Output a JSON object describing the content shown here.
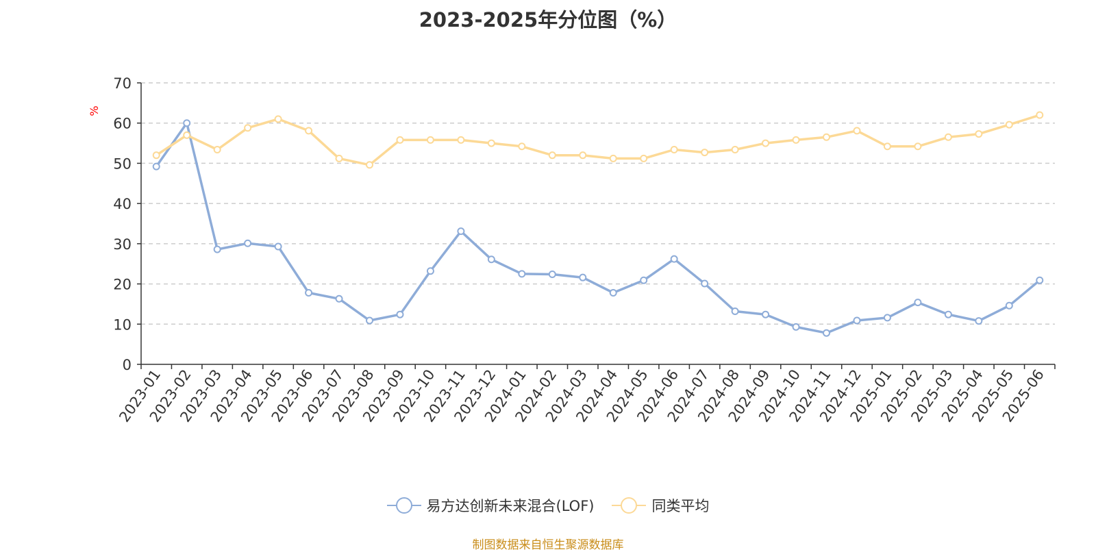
{
  "title": "2023-2025年分位图（%）",
  "source": "制图数据来自恒生聚源数据库",
  "colors": {
    "series1": "#8eacd8",
    "series2": "#fcd996",
    "grid": "#cccccc",
    "axis": "#333333",
    "unit": "#ff0000",
    "source": "#c98d1a"
  },
  "chart_data": {
    "type": "line",
    "title": "2023-2025年分位图（%）",
    "ylabel": "%",
    "ylim": [
      0,
      70
    ],
    "yticks": [
      0,
      10,
      20,
      30,
      40,
      50,
      60,
      70
    ],
    "grid": true,
    "legend_position": "bottom",
    "categories": [
      "2023-01",
      "2023-02",
      "2023-03",
      "2023-04",
      "2023-05",
      "2023-06",
      "2023-07",
      "2023-08",
      "2023-09",
      "2023-10",
      "2023-11",
      "2023-12",
      "2024-01",
      "2024-02",
      "2024-03",
      "2024-04",
      "2024-05",
      "2024-06",
      "2024-07",
      "2024-08",
      "2024-09",
      "2024-10",
      "2024-11",
      "2024-12",
      "2025-01",
      "2025-02",
      "2025-03",
      "2025-04",
      "2025-05",
      "2025-06"
    ],
    "series": [
      {
        "name": "易方达创新未来混合(LOF)",
        "values": [
          49.2,
          60.0,
          28.6,
          30.1,
          29.3,
          17.8,
          16.3,
          10.9,
          12.4,
          23.2,
          33.1,
          26.1,
          22.5,
          22.4,
          21.6,
          17.8,
          20.9,
          26.2,
          20.1,
          13.2,
          12.4,
          9.3,
          7.8,
          10.9,
          11.6,
          15.4,
          12.4,
          10.8,
          14.6,
          20.9
        ]
      },
      {
        "name": "同类平均",
        "values": [
          52.0,
          57.0,
          53.4,
          58.8,
          61.0,
          58.1,
          51.2,
          49.6,
          55.8,
          55.8,
          55.8,
          55.0,
          54.2,
          52.0,
          52.0,
          51.2,
          51.2,
          53.4,
          52.7,
          53.4,
          55.0,
          55.8,
          56.5,
          58.1,
          54.2,
          54.2,
          56.5,
          57.3,
          59.6,
          62.0
        ]
      }
    ]
  }
}
